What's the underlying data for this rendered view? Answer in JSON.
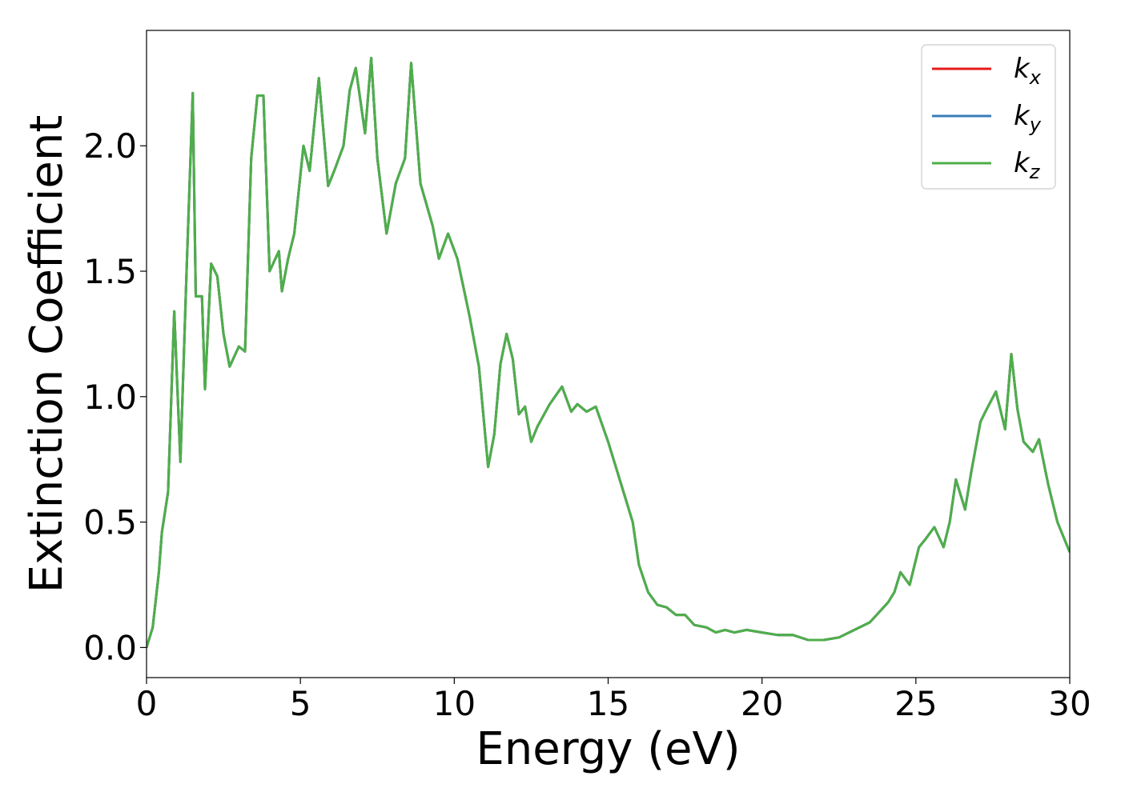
{
  "chart_data": {
    "type": "line",
    "title": "",
    "xlabel": "Energy (eV)",
    "ylabel": "Extinction Coefficient",
    "xlim": [
      0,
      30
    ],
    "ylim": [
      -0.12,
      2.46
    ],
    "xticks": [
      0,
      5,
      10,
      15,
      20,
      25,
      30
    ],
    "xtick_labels": [
      "0",
      "5",
      "10",
      "15",
      "20",
      "25",
      "30"
    ],
    "yticks": [
      0.0,
      0.5,
      1.0,
      1.5,
      2.0
    ],
    "ytick_labels": [
      "0.0",
      "0.5",
      "1.0",
      "1.5",
      "2.0"
    ],
    "grid": false,
    "legend_position": "top-right",
    "x": [
      0,
      0.2,
      0.4,
      0.5,
      0.7,
      0.9,
      1.1,
      1.3,
      1.5,
      1.6,
      1.8,
      1.9,
      2.1,
      2.3,
      2.5,
      2.7,
      3.0,
      3.2,
      3.4,
      3.6,
      3.8,
      4.0,
      4.3,
      4.4,
      4.6,
      4.8,
      5.1,
      5.3,
      5.6,
      5.9,
      6.1,
      6.4,
      6.6,
      6.8,
      7.1,
      7.3,
      7.5,
      7.8,
      8.1,
      8.4,
      8.6,
      8.9,
      9.3,
      9.5,
      9.8,
      10.1,
      10.5,
      10.8,
      11.1,
      11.3,
      11.5,
      11.7,
      11.9,
      12.1,
      12.3,
      12.5,
      12.7,
      13.1,
      13.5,
      13.8,
      14.0,
      14.3,
      14.6,
      15.0,
      15.5,
      15.8,
      16.0,
      16.3,
      16.6,
      16.9,
      17.2,
      17.5,
      17.8,
      18.2,
      18.5,
      18.8,
      19.1,
      19.5,
      20.0,
      20.5,
      21.0,
      21.5,
      22.0,
      22.5,
      23.0,
      23.5,
      23.8,
      24.1,
      24.3,
      24.5,
      24.8,
      25.1,
      25.3,
      25.6,
      25.9,
      26.1,
      26.3,
      26.6,
      26.8,
      27.1,
      27.3,
      27.6,
      27.9,
      28.1,
      28.3,
      28.5,
      28.8,
      29.0,
      29.3,
      29.6,
      29.8,
      30.0
    ],
    "series": [
      {
        "name": "k_x",
        "color": "#e41a1c",
        "values": [
          0.0,
          0.08,
          0.3,
          0.46,
          0.62,
          1.34,
          0.74,
          1.5,
          2.21,
          1.4,
          1.4,
          1.03,
          1.53,
          1.48,
          1.25,
          1.12,
          1.2,
          1.18,
          1.95,
          2.2,
          2.2,
          1.5,
          1.58,
          1.42,
          1.55,
          1.65,
          2.0,
          1.9,
          2.27,
          1.84,
          1.9,
          2.0,
          2.22,
          2.31,
          2.05,
          2.35,
          1.95,
          1.65,
          1.85,
          1.95,
          2.33,
          1.85,
          1.68,
          1.55,
          1.65,
          1.55,
          1.32,
          1.12,
          0.72,
          0.85,
          1.13,
          1.25,
          1.15,
          0.93,
          0.96,
          0.82,
          0.88,
          0.97,
          1.04,
          0.94,
          0.97,
          0.94,
          0.96,
          0.82,
          0.62,
          0.5,
          0.33,
          0.22,
          0.17,
          0.16,
          0.13,
          0.13,
          0.09,
          0.08,
          0.06,
          0.07,
          0.06,
          0.07,
          0.06,
          0.05,
          0.05,
          0.03,
          0.03,
          0.04,
          0.07,
          0.1,
          0.14,
          0.18,
          0.22,
          0.3,
          0.25,
          0.4,
          0.43,
          0.48,
          0.4,
          0.5,
          0.67,
          0.55,
          0.7,
          0.9,
          0.95,
          1.02,
          0.87,
          1.17,
          0.95,
          0.82,
          0.78,
          0.83,
          0.65,
          0.5,
          0.44,
          0.38
        ]
      },
      {
        "name": "k_y",
        "color": "#377eb8",
        "values": [
          0.0,
          0.08,
          0.3,
          0.46,
          0.62,
          1.34,
          0.74,
          1.5,
          2.21,
          1.4,
          1.4,
          1.03,
          1.53,
          1.48,
          1.25,
          1.12,
          1.2,
          1.18,
          1.95,
          2.2,
          2.2,
          1.5,
          1.58,
          1.42,
          1.55,
          1.65,
          2.0,
          1.9,
          2.27,
          1.84,
          1.9,
          2.0,
          2.22,
          2.31,
          2.05,
          2.35,
          1.95,
          1.65,
          1.85,
          1.95,
          2.33,
          1.85,
          1.68,
          1.55,
          1.65,
          1.55,
          1.32,
          1.12,
          0.72,
          0.85,
          1.13,
          1.25,
          1.15,
          0.93,
          0.96,
          0.82,
          0.88,
          0.97,
          1.04,
          0.94,
          0.97,
          0.94,
          0.96,
          0.82,
          0.62,
          0.5,
          0.33,
          0.22,
          0.17,
          0.16,
          0.13,
          0.13,
          0.09,
          0.08,
          0.06,
          0.07,
          0.06,
          0.07,
          0.06,
          0.05,
          0.05,
          0.03,
          0.03,
          0.04,
          0.07,
          0.1,
          0.14,
          0.18,
          0.22,
          0.3,
          0.25,
          0.4,
          0.43,
          0.48,
          0.4,
          0.5,
          0.67,
          0.55,
          0.7,
          0.9,
          0.95,
          1.02,
          0.87,
          1.17,
          0.95,
          0.82,
          0.78,
          0.83,
          0.65,
          0.5,
          0.44,
          0.38
        ]
      },
      {
        "name": "k_z",
        "color": "#4daf4a",
        "values": [
          0.0,
          0.08,
          0.3,
          0.46,
          0.62,
          1.34,
          0.74,
          1.5,
          2.21,
          1.4,
          1.4,
          1.03,
          1.53,
          1.48,
          1.25,
          1.12,
          1.2,
          1.18,
          1.95,
          2.2,
          2.2,
          1.5,
          1.58,
          1.42,
          1.55,
          1.65,
          2.0,
          1.9,
          2.27,
          1.84,
          1.9,
          2.0,
          2.22,
          2.31,
          2.05,
          2.35,
          1.95,
          1.65,
          1.85,
          1.95,
          2.33,
          1.85,
          1.68,
          1.55,
          1.65,
          1.55,
          1.32,
          1.12,
          0.72,
          0.85,
          1.13,
          1.25,
          1.15,
          0.93,
          0.96,
          0.82,
          0.88,
          0.97,
          1.04,
          0.94,
          0.97,
          0.94,
          0.96,
          0.82,
          0.62,
          0.5,
          0.33,
          0.22,
          0.17,
          0.16,
          0.13,
          0.13,
          0.09,
          0.08,
          0.06,
          0.07,
          0.06,
          0.07,
          0.06,
          0.05,
          0.05,
          0.03,
          0.03,
          0.04,
          0.07,
          0.1,
          0.14,
          0.18,
          0.22,
          0.3,
          0.25,
          0.4,
          0.43,
          0.48,
          0.4,
          0.5,
          0.67,
          0.55,
          0.7,
          0.9,
          0.95,
          1.02,
          0.87,
          1.17,
          0.95,
          0.82,
          0.78,
          0.83,
          0.65,
          0.5,
          0.44,
          0.38
        ]
      }
    ],
    "legend": [
      {
        "base": "k",
        "sub": "x",
        "color": "#e41a1c"
      },
      {
        "base": "k",
        "sub": "y",
        "color": "#377eb8"
      },
      {
        "base": "k",
        "sub": "z",
        "color": "#4daf4a"
      }
    ]
  }
}
